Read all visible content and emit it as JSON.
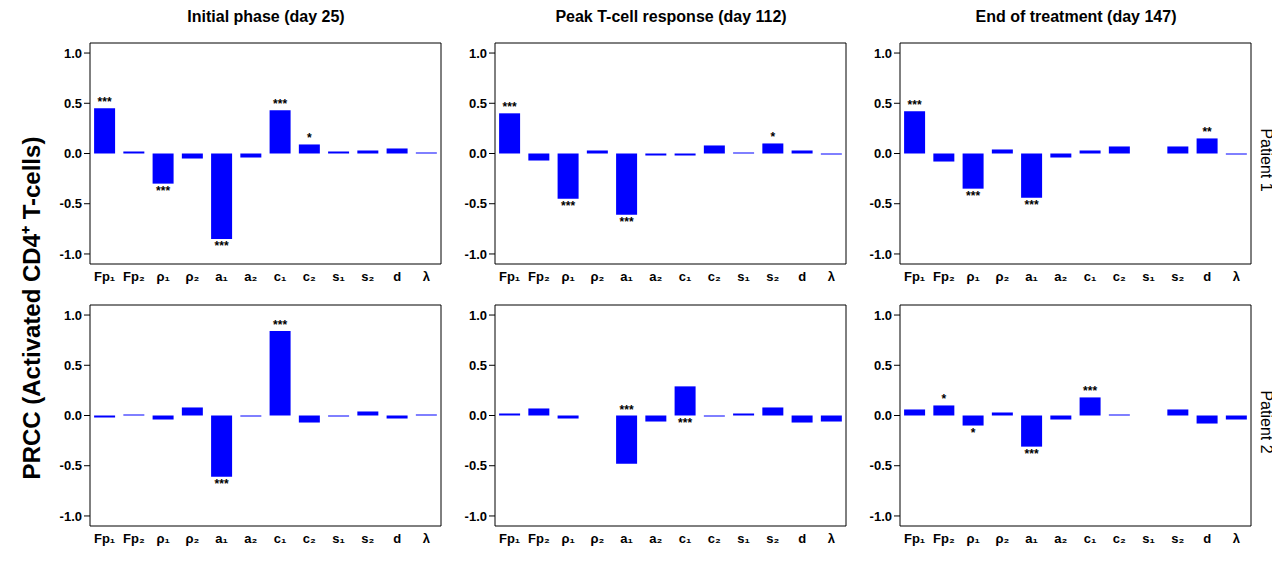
{
  "ylabel": "PRCC (Activated CD4⁺ T-cells)",
  "chart_data": [
    {
      "type": "bar",
      "title": "Initial phase (day 25)",
      "categories": [
        "Fp₁",
        "Fp₂",
        "ρ₁",
        "ρ₂",
        "a₁",
        "a₂",
        "c₁",
        "c₂",
        "s₁",
        "s₂",
        "d",
        "λ"
      ],
      "values": [
        0.45,
        0.02,
        -0.3,
        -0.05,
        -0.85,
        -0.04,
        0.43,
        0.09,
        0.02,
        0.03,
        0.05,
        0.01
      ],
      "significance": [
        "***",
        null,
        "***",
        null,
        "***",
        null,
        "***",
        "*",
        null,
        null,
        null,
        null
      ],
      "color": "#0000ff",
      "ylim": [
        -1.1,
        1.1
      ],
      "yticks": [
        {
          "value": -1,
          "label": "-1.0"
        },
        {
          "value": -0.5,
          "label": "-0.5"
        },
        {
          "value": 0,
          "label": "0.0"
        },
        {
          "value": 0.5,
          "label": "0.5"
        },
        {
          "value": 1,
          "label": "1.0"
        }
      ]
    },
    {
      "type": "bar",
      "title": "Peak T-cell response (day 112)",
      "categories": [
        "Fp₁",
        "Fp₂",
        "ρ₁",
        "ρ₂",
        "a₁",
        "a₂",
        "c₁",
        "c₂",
        "s₁",
        "s₂",
        "d",
        "λ"
      ],
      "values": [
        0.4,
        -0.07,
        -0.45,
        0.03,
        -0.61,
        -0.02,
        -0.02,
        0.08,
        0.01,
        0.1,
        0.03,
        -0.01
      ],
      "significance": [
        "***",
        null,
        "***",
        null,
        "***",
        null,
        null,
        null,
        null,
        "*",
        null,
        null
      ],
      "color": "#0000ff",
      "ylim": [
        -1.1,
        1.1
      ],
      "yticks": [
        {
          "value": -1,
          "label": "-1.0"
        },
        {
          "value": -0.5,
          "label": "-0.5"
        },
        {
          "value": 0,
          "label": "0.0"
        },
        {
          "value": 0.5,
          "label": "0.5"
        },
        {
          "value": 1,
          "label": "1.0"
        }
      ]
    },
    {
      "type": "bar",
      "title": "End of treatment (day 147)",
      "row_label": "Patient 1",
      "categories": [
        "Fp₁",
        "Fp₂",
        "ρ₁",
        "ρ₂",
        "a₁",
        "a₂",
        "c₁",
        "c₂",
        "s₁",
        "s₂",
        "d",
        "λ"
      ],
      "values": [
        0.42,
        -0.08,
        -0.35,
        0.04,
        -0.44,
        -0.04,
        0.03,
        0.07,
        0.0,
        0.07,
        0.15,
        -0.01
      ],
      "significance": [
        "***",
        null,
        "***",
        null,
        "***",
        null,
        null,
        null,
        null,
        null,
        "**",
        null
      ],
      "color": "#0000ff",
      "ylim": [
        -1.1,
        1.1
      ],
      "yticks": [
        {
          "value": -1,
          "label": "-1.0"
        },
        {
          "value": -0.5,
          "label": "-0.5"
        },
        {
          "value": 0,
          "label": "0.0"
        },
        {
          "value": 0.5,
          "label": "0.5"
        },
        {
          "value": 1,
          "label": "1.0"
        }
      ]
    },
    {
      "type": "bar",
      "categories": [
        "Fp₁",
        "Fp₂",
        "ρ₁",
        "ρ₂",
        "a₁",
        "a₂",
        "c₁",
        "c₂",
        "s₁",
        "s₂",
        "d",
        "λ"
      ],
      "values": [
        -0.02,
        0.01,
        -0.04,
        0.08,
        -0.61,
        -0.01,
        0.84,
        -0.07,
        -0.01,
        0.04,
        -0.03,
        0.01
      ],
      "significance": [
        null,
        null,
        null,
        null,
        "***",
        null,
        "***",
        null,
        null,
        null,
        null,
        null
      ],
      "color": "#0000ff",
      "ylim": [
        -1.1,
        1.1
      ],
      "yticks": [
        {
          "value": -1,
          "label": "-1.0"
        },
        {
          "value": -0.5,
          "label": "-0.5"
        },
        {
          "value": 0,
          "label": "0.0"
        },
        {
          "value": 0.5,
          "label": "0.5"
        },
        {
          "value": 1,
          "label": "1.0"
        }
      ]
    },
    {
      "type": "bar",
      "categories": [
        "Fp₁",
        "Fp₂",
        "ρ₁",
        "ρ₂",
        "a₁",
        "a₂",
        "c₁",
        "c₂",
        "s₁",
        "s₂",
        "d",
        "λ"
      ],
      "values": [
        0.02,
        0.07,
        -0.03,
        0.0,
        -0.48,
        -0.06,
        0.29,
        -0.01,
        0.02,
        0.08,
        -0.07,
        -0.06
      ],
      "significance": [
        null,
        null,
        null,
        null,
        "***",
        null,
        "***",
        null,
        null,
        null,
        null,
        null
      ],
      "color": "#0000ff",
      "ylim": [
        -1.1,
        1.1
      ],
      "yticks": [
        {
          "value": -1,
          "label": "-1.0"
        },
        {
          "value": -0.5,
          "label": "-0.5"
        },
        {
          "value": 0,
          "label": "0.0"
        },
        {
          "value": 0.5,
          "label": "0.5"
        },
        {
          "value": 1,
          "label": "1.0"
        }
      ]
    },
    {
      "type": "bar",
      "row_label": "Patient 2",
      "categories": [
        "Fp₁",
        "Fp₂",
        "ρ₁",
        "ρ₂",
        "a₁",
        "a₂",
        "c₁",
        "c₂",
        "s₁",
        "s₂",
        "d",
        "λ"
      ],
      "values": [
        0.06,
        0.1,
        -0.1,
        0.03,
        -0.31,
        -0.04,
        0.18,
        0.01,
        0.0,
        0.06,
        -0.08,
        -0.04
      ],
      "significance": [
        null,
        "*",
        "*",
        null,
        "***",
        null,
        "***",
        null,
        null,
        null,
        null,
        null
      ],
      "color": "#0000ff",
      "ylim": [
        -1.1,
        1.1
      ],
      "yticks": [
        {
          "value": -1,
          "label": "-1.0"
        },
        {
          "value": -0.5,
          "label": "-0.5"
        },
        {
          "value": 0,
          "label": "0.0"
        },
        {
          "value": 0.5,
          "label": "0.5"
        },
        {
          "value": 1,
          "label": "1.0"
        }
      ]
    }
  ]
}
